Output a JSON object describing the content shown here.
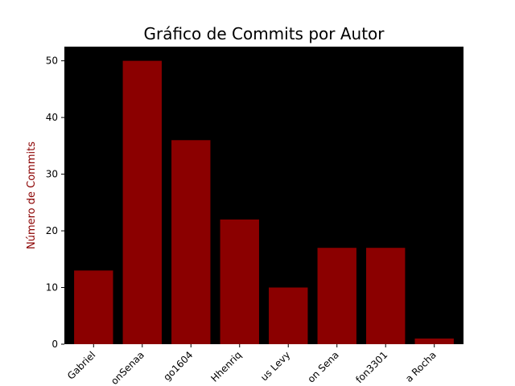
{
  "chart_data": {
    "type": "bar",
    "title": "Gráfico de Commits por Autor",
    "xlabel": "",
    "ylabel": "Número de Commits",
    "categories": [
      "Gabriel",
      "onSenaa",
      "go1604",
      "Hhenriq",
      "us Levy",
      "on Sena",
      "fon3301",
      "a Rocha"
    ],
    "values": [
      13,
      50,
      36,
      22,
      10,
      17,
      17,
      1
    ],
    "ylim": [
      0,
      52.5
    ],
    "yticks": [
      0,
      10,
      20,
      30,
      40,
      50
    ],
    "grid": false,
    "colors": {
      "bar": "#8b0000",
      "plot_background": "#000000",
      "ylabel": "#8b0000",
      "text": "#000000"
    }
  }
}
